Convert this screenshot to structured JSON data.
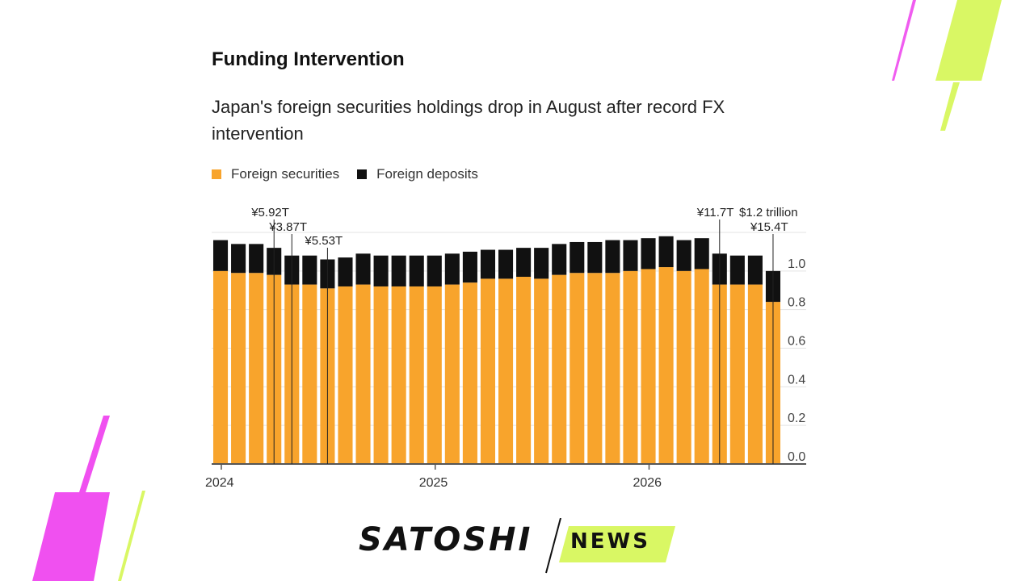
{
  "chart_data": {
    "type": "bar",
    "title": "Funding Intervention",
    "subtitle": "Japan's foreign securities holdings drop in August after record FX intervention",
    "stacked": true,
    "x_labels": [
      "2024",
      "2025",
      "2026"
    ],
    "y_ticks": [
      0.0,
      0.2,
      0.4,
      0.6,
      0.8,
      1.0
    ],
    "y_tick_labels": [
      "0.0",
      "0.2",
      "0.4",
      "0.6",
      "0.8",
      "1.0"
    ],
    "ylim": [
      0,
      1.2
    ],
    "grid": true,
    "legend_position": "top-left",
    "series": [
      {
        "name": "Foreign securities",
        "color": "#f8a42c",
        "values": [
          1.0,
          0.99,
          0.99,
          0.98,
          0.93,
          0.93,
          0.91,
          0.92,
          0.93,
          0.92,
          0.92,
          0.92,
          0.92,
          0.93,
          0.94,
          0.96,
          0.96,
          0.97,
          0.96,
          0.98,
          0.99,
          0.99,
          0.99,
          1.0,
          1.01,
          1.02,
          1.0,
          1.01,
          0.93,
          0.93,
          0.93,
          0.84
        ]
      },
      {
        "name": "Foreign deposits",
        "color": "#111111",
        "values": [
          0.16,
          0.15,
          0.15,
          0.14,
          0.15,
          0.15,
          0.15,
          0.15,
          0.16,
          0.16,
          0.16,
          0.16,
          0.16,
          0.16,
          0.16,
          0.15,
          0.15,
          0.15,
          0.16,
          0.16,
          0.16,
          0.16,
          0.17,
          0.16,
          0.16,
          0.16,
          0.16,
          0.16,
          0.16,
          0.15,
          0.15,
          0.16
        ]
      }
    ],
    "annotations": [
      {
        "text": "¥5.92T",
        "bar_index": 3,
        "row": 1
      },
      {
        "text": "¥3.87T",
        "bar_index": 4,
        "row": 2
      },
      {
        "text": "¥5.53T",
        "bar_index": 6,
        "row": 3
      },
      {
        "text": "¥11.7T",
        "bar_index": 28,
        "row": 1
      },
      {
        "text": "$1.2 trillion",
        "bar_index": -1,
        "row": 1
      },
      {
        "text": "¥15.4T",
        "bar_index": 31,
        "row": 2
      }
    ]
  },
  "branding": {
    "logo_text": "SATOSHI",
    "logo_badge": "NEWS",
    "accent_pink": "#f050f0",
    "accent_lime": "#d4f55a"
  }
}
